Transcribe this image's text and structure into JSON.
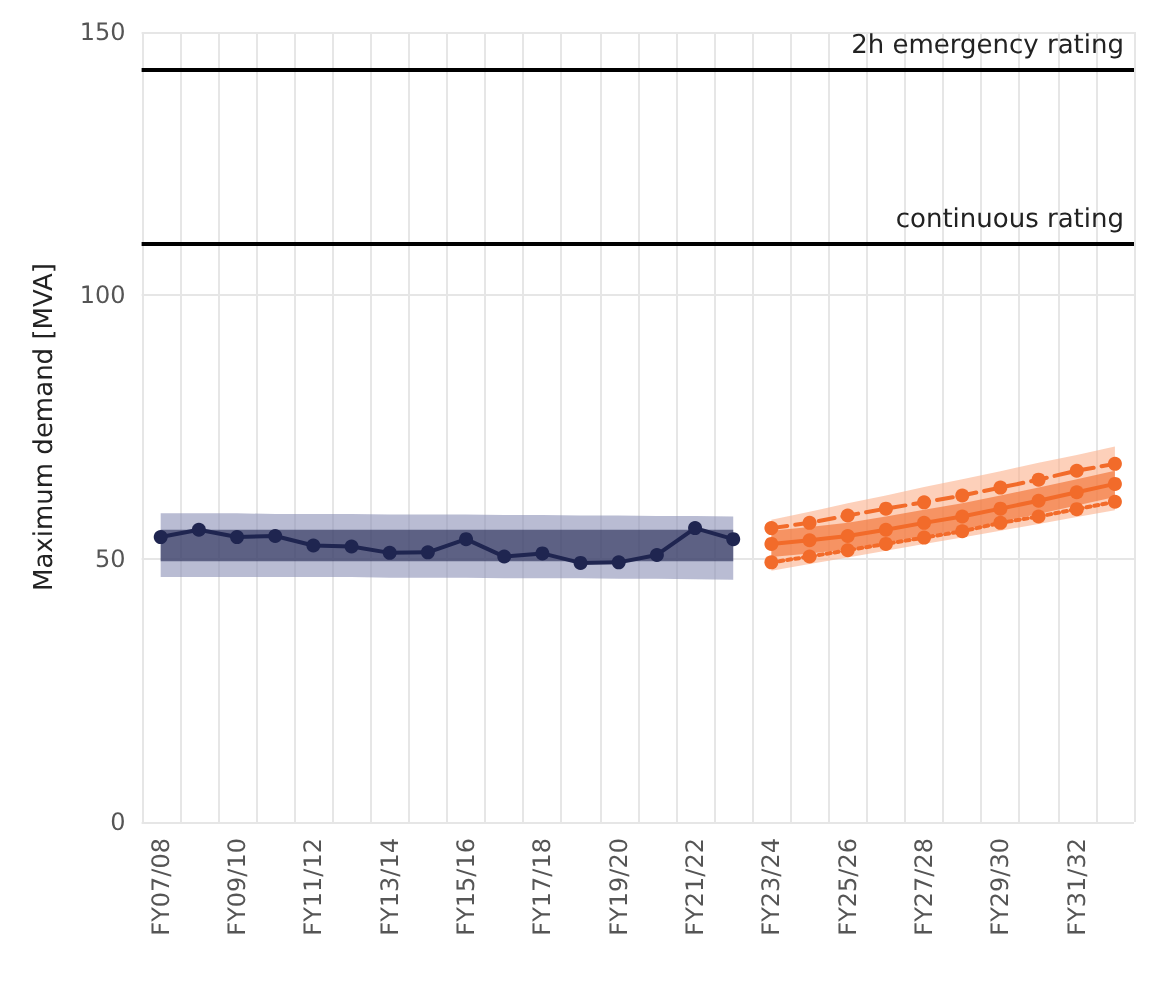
{
  "chart_data": {
    "type": "line",
    "ylabel": "Maximum demand [MVA]",
    "categories": [
      "FY07/08",
      null,
      "FY09/10",
      null,
      "FY11/12",
      null,
      "FY13/14",
      null,
      "FY15/16",
      null,
      "FY17/18",
      null,
      "FY19/20",
      null,
      "FY21/22",
      null,
      "FY23/24",
      null,
      "FY25/26",
      null,
      "FY27/28",
      null,
      "FY29/30",
      null,
      "FY31/32",
      null
    ],
    "series": [
      {
        "color": "#8a8fb5",
        "line_style": "solid",
        "values": [
          null,
          null,
          null,
          null,
          null,
          null,
          null,
          null,
          null,
          null,
          null,
          null,
          null,
          null,
          null,
          null,
          null,
          null,
          null,
          null,
          null,
          null,
          null,
          null,
          null,
          null
        ],
        "lower": [
          46.5,
          46.5,
          46.5,
          46.5,
          46.5,
          46.5,
          46.4,
          46.4,
          46.4,
          46.3,
          46.3,
          46.3,
          46.2,
          46.2,
          46.1,
          46.0,
          null,
          null,
          null,
          null,
          null,
          null,
          null,
          null,
          null,
          null
        ],
        "upper": [
          58.6,
          58.6,
          58.6,
          58.5,
          58.5,
          58.5,
          58.4,
          58.4,
          58.4,
          58.3,
          58.3,
          58.2,
          58.2,
          58.1,
          58.1,
          58.0,
          null,
          null,
          null,
          null,
          null,
          null,
          null,
          null,
          null,
          null
        ]
      },
      {
        "color": "#1f2550",
        "line_style": "solid",
        "values": [
          54.1,
          55.5,
          54.1,
          54.3,
          52.5,
          52.3,
          51.1,
          51.2,
          53.7,
          50.4,
          51.0,
          49.2,
          49.3,
          50.7,
          55.8,
          53.7,
          null,
          null,
          null,
          null,
          null,
          null,
          null,
          null,
          null,
          null
        ],
        "lower": [
          49.5,
          49.5,
          49.5,
          49.5,
          49.5,
          49.5,
          49.5,
          49.5,
          49.5,
          49.5,
          49.5,
          49.5,
          49.5,
          49.5,
          49.5,
          49.5,
          null,
          null,
          null,
          null,
          null,
          null,
          null,
          null,
          null,
          null
        ],
        "upper": [
          55.5,
          55.5,
          55.5,
          55.5,
          55.5,
          55.5,
          55.5,
          55.5,
          55.5,
          55.5,
          55.5,
          55.5,
          55.5,
          55.5,
          55.5,
          55.5,
          null,
          null,
          null,
          null,
          null,
          null,
          null,
          null,
          null,
          null
        ]
      },
      {
        "color": "#fbb08c",
        "line_style": "solid",
        "values": [
          null,
          null,
          null,
          null,
          null,
          null,
          null,
          null,
          null,
          null,
          null,
          null,
          null,
          null,
          null,
          null,
          null,
          null,
          null,
          null,
          null,
          null,
          null,
          null,
          null,
          null
        ],
        "lower": [
          null,
          null,
          null,
          null,
          null,
          null,
          null,
          null,
          null,
          null,
          null,
          null,
          null,
          null,
          null,
          null,
          47.7,
          49.0,
          50.2,
          51.5,
          52.8,
          54.0,
          55.3,
          56.6,
          57.9,
          59.2
        ],
        "upper": [
          null,
          null,
          null,
          null,
          null,
          null,
          null,
          null,
          null,
          null,
          null,
          null,
          null,
          null,
          null,
          null,
          57.4,
          58.9,
          60.5,
          62.0,
          63.6,
          65.1,
          66.6,
          68.2,
          69.7,
          71.3
        ]
      },
      {
        "color": "#f26b2a",
        "line_style": "solid",
        "values": [
          null,
          null,
          null,
          null,
          null,
          null,
          null,
          null,
          null,
          null,
          null,
          null,
          null,
          null,
          null,
          null,
          52.8,
          53.5,
          54.3,
          55.5,
          56.8,
          58.0,
          59.5,
          61.0,
          62.6,
          64.2
        ],
        "lower": [
          null,
          null,
          null,
          null,
          null,
          null,
          null,
          null,
          null,
          null,
          null,
          null,
          null,
          null,
          null,
          null,
          50.3,
          51.0,
          51.8,
          53.0,
          54.3,
          55.5,
          57.0,
          58.5,
          60.1,
          61.7
        ],
        "upper": [
          null,
          null,
          null,
          null,
          null,
          null,
          null,
          null,
          null,
          null,
          null,
          null,
          null,
          null,
          null,
          null,
          55.3,
          56.0,
          56.8,
          58.0,
          59.3,
          60.5,
          62.0,
          63.5,
          65.1,
          66.7
        ]
      },
      {
        "color": "#f26b2a",
        "line_style": "dashed",
        "values": [
          null,
          null,
          null,
          null,
          null,
          null,
          null,
          null,
          null,
          null,
          null,
          null,
          null,
          null,
          null,
          null,
          55.8,
          56.8,
          58.2,
          59.5,
          60.7,
          62.0,
          63.5,
          65.0,
          66.7,
          68.0
        ]
      },
      {
        "color": "#f26b2a",
        "line_style": "dotted",
        "values": [
          null,
          null,
          null,
          null,
          null,
          null,
          null,
          null,
          null,
          null,
          null,
          null,
          null,
          null,
          null,
          null,
          49.3,
          50.4,
          51.6,
          52.8,
          54.0,
          55.2,
          56.8,
          58.0,
          59.4,
          60.8
        ]
      }
    ],
    "ylim": [
      0,
      150
    ],
    "yticks": [
      0,
      50,
      100,
      150
    ],
    "ref_lines": [
      {
        "axis": "y",
        "value": 143,
        "label": "2h emergency rating",
        "color": "#000000"
      },
      {
        "axis": "y",
        "value": 110,
        "label": "continuous rating",
        "color": "#000000"
      }
    ],
    "grid": true,
    "marker": "circle"
  }
}
